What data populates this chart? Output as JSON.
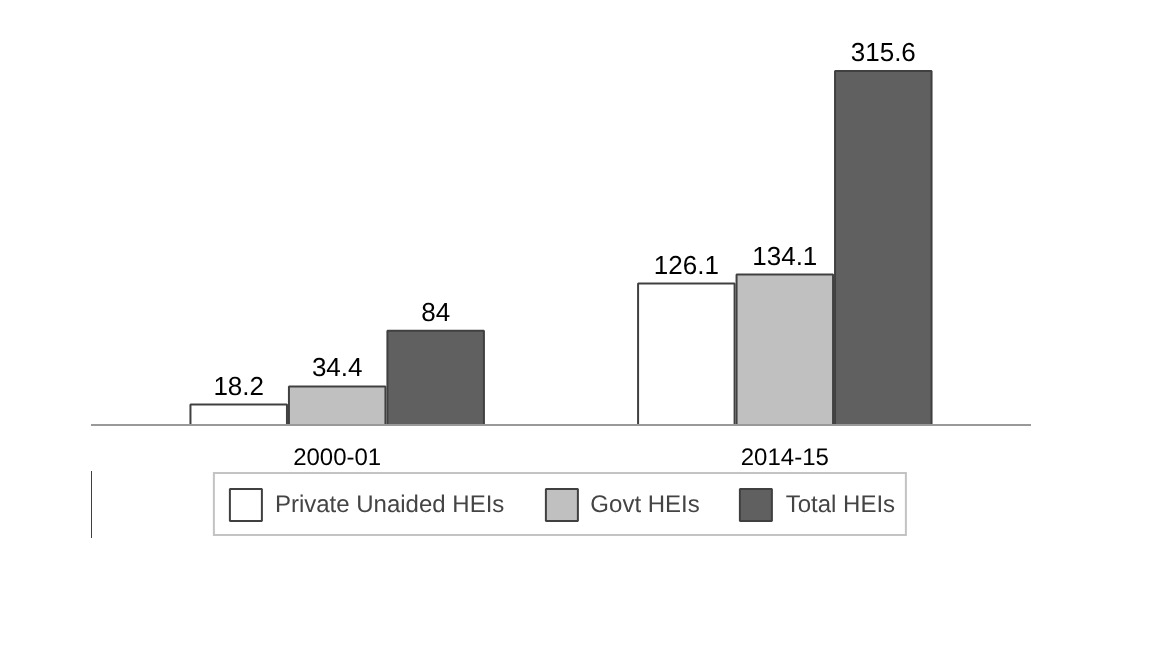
{
  "chart_data": {
    "type": "bar",
    "categories": [
      "2000-01",
      "2014-15"
    ],
    "series": [
      {
        "name": "Private Unaided HEIs",
        "color": "#ffffff",
        "values": [
          18.2,
          126.1
        ]
      },
      {
        "name": "Govt HEIs",
        "color": "#c0c0c0",
        "values": [
          34.4,
          134.1
        ]
      },
      {
        "name": "Total HEIs",
        "color": "#606060",
        "values": [
          84,
          315.6
        ]
      }
    ],
    "data_labels": true,
    "legend": "bottom",
    "grid": false
  }
}
